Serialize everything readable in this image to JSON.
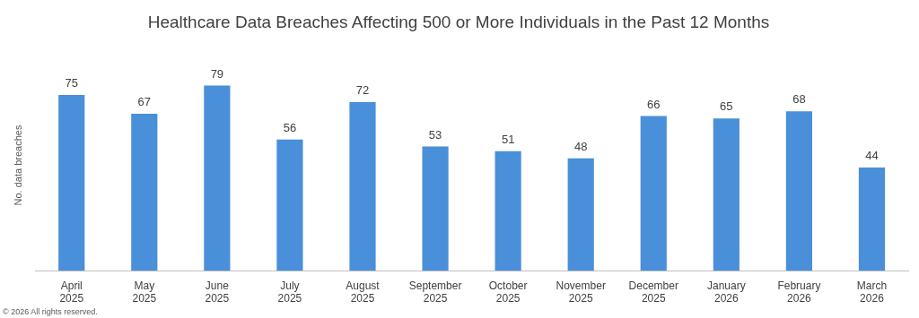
{
  "chart_data": {
    "type": "bar",
    "title": "Healthcare Data Breaches Affecting 500 or More Individuals in the Past 12 Months",
    "ylabel": "No. data breaches",
    "categories": [
      "April 2025",
      "May 2025",
      "June 2025",
      "July 2025",
      "August 2025",
      "September 2025",
      "October 2025",
      "November 2025",
      "December 2025",
      "January 2026",
      "February 2026",
      "March 2026"
    ],
    "values": [
      75,
      67,
      79,
      56,
      72,
      53,
      51,
      48,
      66,
      65,
      68,
      44
    ],
    "color": "#4a8fd9",
    "data_labels": true,
    "grid": false,
    "legend": false,
    "annotations": [
      "© 2026 All rights reserved."
    ]
  }
}
